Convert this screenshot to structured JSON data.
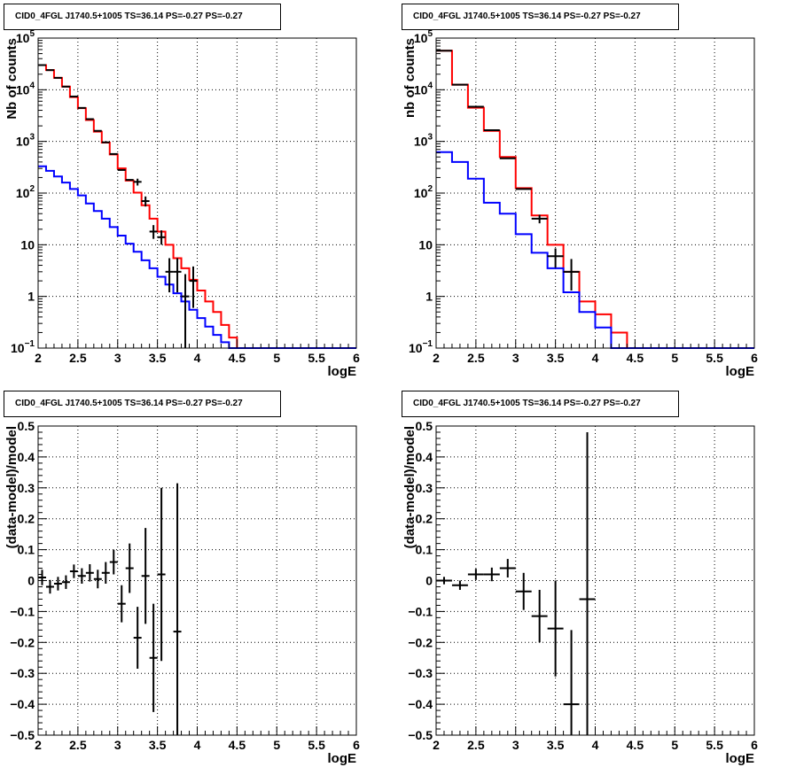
{
  "panels": [
    {
      "title": "CID0_4FGL J1740.5+1005 TS=36.14 PS=-0.27 PS=-0.27",
      "chart_data": {
        "type": "histogram",
        "xlabel": "logE",
        "ylabel": "Nb of counts",
        "xlim": [
          2,
          6
        ],
        "ylim": [
          0.1,
          100000
        ],
        "log_y": true,
        "grid": true,
        "x_ticks": [
          "2",
          "2.5",
          "3",
          "3.5",
          "4",
          "4.5",
          "5",
          "5.5",
          "6"
        ],
        "y_ticks": [
          {
            "base": "10",
            "exp": "−1"
          },
          {
            "base": "1",
            "exp": ""
          },
          {
            "base": "10",
            "exp": ""
          },
          {
            "base": "10",
            "exp": "2"
          },
          {
            "base": "10",
            "exp": "3"
          },
          {
            "base": "10",
            "exp": "4"
          },
          {
            "base": "10",
            "exp": "5"
          }
        ],
        "bin_edges": [
          2.0,
          2.1,
          2.2,
          2.3,
          2.4,
          2.5,
          2.6,
          2.7,
          2.8,
          2.9,
          3.0,
          3.1,
          3.2,
          3.3,
          3.4,
          3.5,
          3.6,
          3.7,
          3.8,
          3.9,
          4.0,
          4.1,
          4.2,
          4.3,
          4.4,
          4.5,
          4.6,
          4.7,
          4.8,
          4.9,
          5.0,
          5.1,
          5.2,
          5.3,
          5.4,
          5.5,
          5.6,
          5.7,
          5.8,
          5.9,
          6.0
        ],
        "series": [
          {
            "color": "#ff0000",
            "values": [
              30000,
              24000,
              17000,
              11500,
              7200,
              4400,
              2600,
              1550,
              950,
              560,
              300,
              175,
              102,
              58,
              32,
              18,
              10,
              5.5,
              3.5,
              2.1,
              1.3,
              0.8,
              0.5,
              0.28,
              0.16,
              0.1,
              0.1,
              0.1,
              0.1,
              0.1,
              0.1,
              0.1,
              0.1,
              0.1,
              0.1,
              0.1,
              0.1,
              0.1,
              0.1,
              0.1
            ]
          },
          {
            "color": "#0000ff",
            "values": [
              330,
              270,
              210,
              160,
              120,
              90,
              63,
              45,
              32,
              22,
              15,
              10.5,
              7.3,
              5,
              3.5,
              2.4,
              1.7,
              1.15,
              0.8,
              0.55,
              0.38,
              0.26,
              0.18,
              0.13,
              0.1,
              0.1,
              0.1,
              0.1,
              0.1,
              0.1,
              0.1,
              0.1,
              0.1,
              0.1,
              0.1,
              0.1,
              0.1,
              0.1,
              0.1,
              0.1
            ]
          }
        ],
        "data_points": [
          {
            "x": 2.05,
            "y": 30000
          },
          {
            "x": 2.15,
            "y": 24000
          },
          {
            "x": 2.25,
            "y": 17000
          },
          {
            "x": 2.35,
            "y": 11500
          },
          {
            "x": 2.45,
            "y": 7400
          },
          {
            "x": 2.55,
            "y": 4450
          },
          {
            "x": 2.65,
            "y": 2700
          },
          {
            "x": 2.75,
            "y": 1600
          },
          {
            "x": 2.85,
            "y": 960
          },
          {
            "x": 2.95,
            "y": 570
          },
          {
            "x": 3.05,
            "y": 280
          },
          {
            "x": 3.15,
            "y": 180
          },
          {
            "x": 3.25,
            "y": 165,
            "err": [
              140,
              190
            ]
          },
          {
            "x": 3.35,
            "y": 70,
            "err": [
              55,
              86
            ]
          },
          {
            "x": 3.45,
            "y": 18,
            "err": [
              13,
              24
            ]
          },
          {
            "x": 3.55,
            "y": 14,
            "err": [
              10,
              19
            ]
          },
          {
            "x": 3.65,
            "y": 3,
            "err": [
              1.2,
              5.5
            ]
          },
          {
            "x": 3.75,
            "y": 3,
            "err": [
              1.2,
              5.5
            ]
          },
          {
            "x": 3.85,
            "y": 1,
            "err": [
              0.1,
              2.7
            ]
          },
          {
            "x": 3.95,
            "y": 2,
            "err": [
              0.6,
              3.8
            ]
          }
        ]
      }
    },
    {
      "title": "CID0_4FGL J1740.5+1005 TS=36.14 PS=-0.27 PS=-0.27",
      "chart_data": {
        "type": "histogram",
        "xlabel": "logE",
        "ylabel": "nb of counts",
        "xlim": [
          2,
          6
        ],
        "ylim": [
          0.1,
          100000
        ],
        "log_y": true,
        "grid": true,
        "x_ticks": [
          "2",
          "2.5",
          "3",
          "3.5",
          "4",
          "4.5",
          "5",
          "5.5",
          "6"
        ],
        "y_ticks": [
          {
            "base": "10",
            "exp": "−1"
          },
          {
            "base": "1",
            "exp": ""
          },
          {
            "base": "10",
            "exp": ""
          },
          {
            "base": "10",
            "exp": "2"
          },
          {
            "base": "10",
            "exp": "3"
          },
          {
            "base": "10",
            "exp": "4"
          },
          {
            "base": "10",
            "exp": "5"
          }
        ],
        "bin_edges": [
          2.0,
          2.2,
          2.4,
          2.6,
          2.8,
          3.0,
          3.2,
          3.4,
          3.6,
          3.8,
          4.0,
          4.2,
          4.4,
          4.6,
          4.8,
          5.0,
          5.2,
          5.4,
          5.6,
          5.8,
          6.0
        ],
        "series": [
          {
            "color": "#ff0000",
            "values": [
              57000,
              12500,
              4500,
              1600,
              500,
              125,
              37,
              10,
              3,
              0.8,
              0.45,
              0.2,
              0.1,
              0.1,
              0.1,
              0.1,
              0.1,
              0.1,
              0.1,
              0.1
            ]
          },
          {
            "color": "#0000ff",
            "values": [
              620,
              400,
              190,
              65,
              40,
              16,
              7,
              3.5,
              1.2,
              0.5,
              0.25,
              0.1,
              0.1,
              0.1,
              0.1,
              0.1,
              0.1,
              0.1,
              0.1,
              0.1
            ]
          }
        ],
        "data_points": [
          {
            "x": 2.1,
            "y": 57000
          },
          {
            "x": 2.3,
            "y": 12500
          },
          {
            "x": 2.5,
            "y": 4700
          },
          {
            "x": 2.7,
            "y": 1650
          },
          {
            "x": 2.9,
            "y": 470
          },
          {
            "x": 3.1,
            "y": 120
          },
          {
            "x": 3.3,
            "y": 32,
            "err": [
              26,
              38
            ]
          },
          {
            "x": 3.5,
            "y": 6,
            "err": [
              3.6,
              8.5
            ]
          },
          {
            "x": 3.7,
            "y": 3,
            "err": [
              1.3,
              5.3
            ]
          }
        ]
      }
    },
    {
      "title": "CID0_4FGL J1740.5+1005 TS=36.14 PS=-0.27 PS=-0.27",
      "chart_data": {
        "type": "scatter",
        "xlabel": "logE",
        "ylabel": "(data-model)/model",
        "xlim": [
          2,
          6
        ],
        "ylim": [
          -0.5,
          0.5
        ],
        "log_y": false,
        "grid": true,
        "x_ticks": [
          "2",
          "2.5",
          "3",
          "3.5",
          "4",
          "4.5",
          "5",
          "5.5",
          "6"
        ],
        "y_ticks": [
          {
            "base": "−0.5",
            "exp": ""
          },
          {
            "base": "−0.4",
            "exp": ""
          },
          {
            "base": "−0.3",
            "exp": ""
          },
          {
            "base": "−0.2",
            "exp": ""
          },
          {
            "base": "−0.1",
            "exp": ""
          },
          {
            "base": "0",
            "exp": ""
          },
          {
            "base": "0.1",
            "exp": ""
          },
          {
            "base": "0.2",
            "exp": ""
          },
          {
            "base": "0.3",
            "exp": ""
          },
          {
            "base": "0.4",
            "exp": ""
          },
          {
            "base": "0.5",
            "exp": ""
          }
        ],
        "bin_width": 0.1,
        "data_points": [
          {
            "x": 2.05,
            "y": 0.01,
            "err": 0.025
          },
          {
            "x": 2.15,
            "y": -0.02,
            "err": 0.022
          },
          {
            "x": 2.25,
            "y": -0.01,
            "err": 0.022
          },
          {
            "x": 2.35,
            "y": -0.005,
            "err": 0.022
          },
          {
            "x": 2.45,
            "y": 0.03,
            "err": 0.022
          },
          {
            "x": 2.55,
            "y": 0.015,
            "err": 0.025
          },
          {
            "x": 2.65,
            "y": 0.025,
            "err": 0.028
          },
          {
            "x": 2.75,
            "y": 0.005,
            "err": 0.03
          },
          {
            "x": 2.85,
            "y": 0.025,
            "err": 0.035
          },
          {
            "x": 2.95,
            "y": 0.06,
            "err": 0.04
          },
          {
            "x": 3.05,
            "y": -0.075,
            "err": 0.06
          },
          {
            "x": 3.15,
            "y": 0.04,
            "err": 0.08
          },
          {
            "x": 3.25,
            "y": -0.185,
            "err": 0.1
          },
          {
            "x": 3.35,
            "y": 0.015,
            "err": 0.155
          },
          {
            "x": 3.45,
            "y": -0.25,
            "err": 0.175
          },
          {
            "x": 3.55,
            "y": 0.02,
            "err": 0.28
          },
          {
            "x": 3.75,
            "y": -0.165,
            "err": 0.48
          }
        ]
      }
    },
    {
      "title": "CID0_4FGL J1740.5+1005 TS=36.14 PS=-0.27 PS=-0.27",
      "chart_data": {
        "type": "scatter",
        "xlabel": "logE",
        "ylabel": "(data-model)/model",
        "xlim": [
          2,
          6
        ],
        "ylim": [
          -0.5,
          0.5
        ],
        "log_y": false,
        "grid": true,
        "x_ticks": [
          "2",
          "2.5",
          "3",
          "3.5",
          "4",
          "4.5",
          "5",
          "5.5",
          "6"
        ],
        "y_ticks": [
          {
            "base": "−0.5",
            "exp": ""
          },
          {
            "base": "−0.4",
            "exp": ""
          },
          {
            "base": "−0.3",
            "exp": ""
          },
          {
            "base": "−0.2",
            "exp": ""
          },
          {
            "base": "−0.1",
            "exp": ""
          },
          {
            "base": "0",
            "exp": ""
          },
          {
            "base": "0.1",
            "exp": ""
          },
          {
            "base": "0.2",
            "exp": ""
          },
          {
            "base": "0.3",
            "exp": ""
          },
          {
            "base": "0.4",
            "exp": ""
          },
          {
            "base": "0.5",
            "exp": ""
          }
        ],
        "bin_width": 0.2,
        "data_points": [
          {
            "x": 2.1,
            "y": 0.0,
            "err": 0.012
          },
          {
            "x": 2.3,
            "y": -0.015,
            "err": 0.015
          },
          {
            "x": 2.5,
            "y": 0.02,
            "err": 0.018
          },
          {
            "x": 2.7,
            "y": 0.02,
            "err": 0.022
          },
          {
            "x": 2.9,
            "y": 0.04,
            "err": 0.03
          },
          {
            "x": 3.1,
            "y": -0.035,
            "err": 0.06
          },
          {
            "x": 3.3,
            "y": -0.115,
            "err": 0.085
          },
          {
            "x": 3.5,
            "y": -0.155,
            "err": 0.155
          },
          {
            "x": 3.7,
            "y": -0.4,
            "err": 0.24
          },
          {
            "x": 3.9,
            "y": -0.06,
            "err": 0.54
          }
        ]
      }
    }
  ]
}
